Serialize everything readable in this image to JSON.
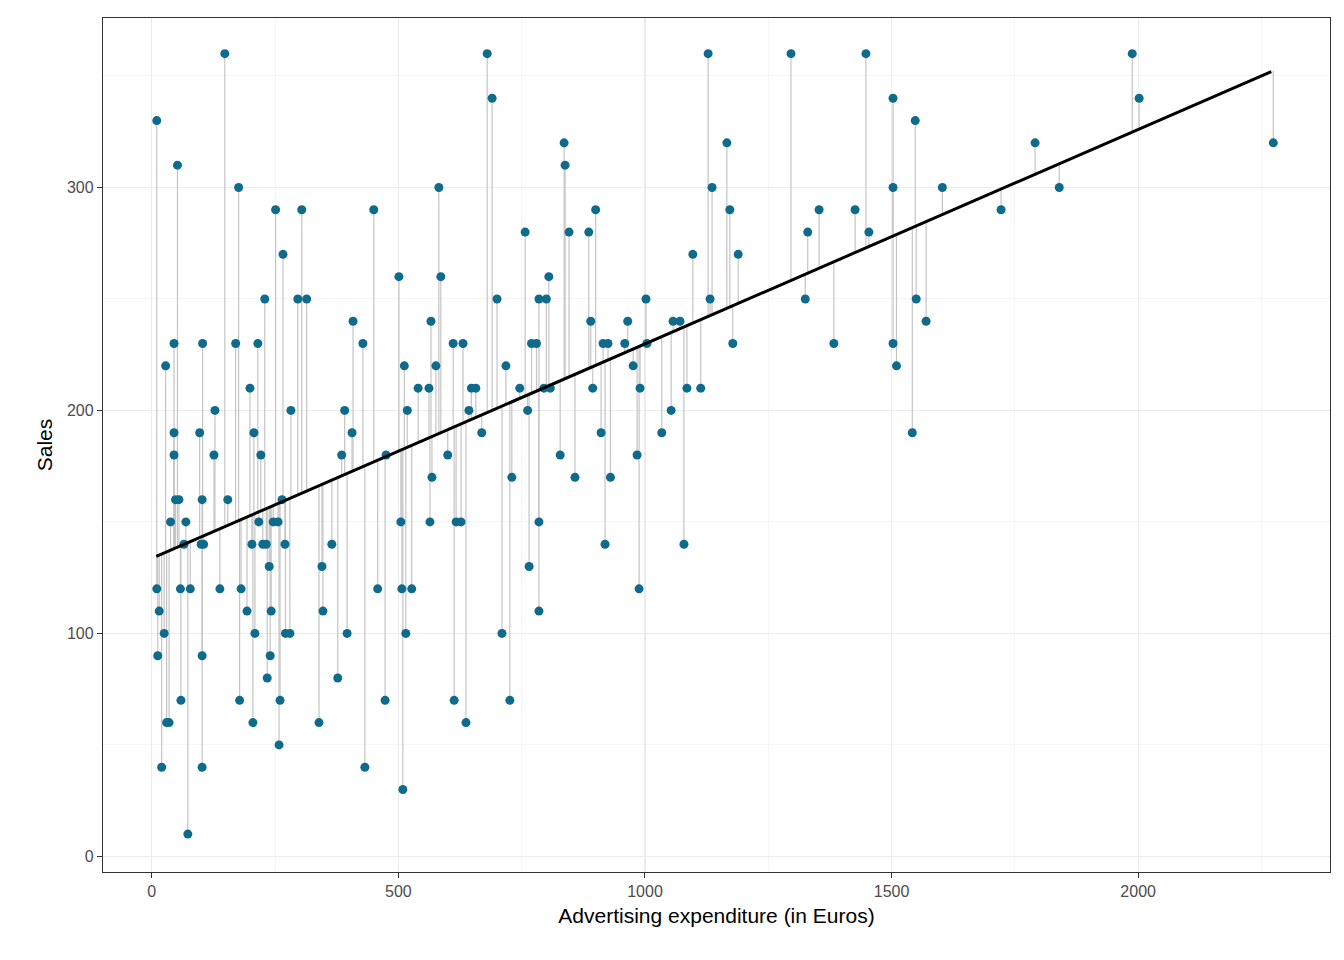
{
  "chart_data": {
    "type": "scatter",
    "x_label": "Advertising expenditure (in Euros)",
    "y_label": "Sales",
    "xlim": [
      -99,
      2389
    ],
    "ylim": [
      -7,
      376
    ],
    "xticks": [
      0,
      500,
      1000,
      1500,
      2000
    ],
    "yticks": [
      0,
      100,
      200,
      300
    ],
    "grid": true,
    "series": [
      {
        "type": "scatter",
        "color": "#0f6b8c",
        "marker": "circle",
        "x": [
          10,
          10,
          12,
          15,
          20,
          25,
          28,
          30,
          35,
          38,
          45,
          45,
          45,
          48,
          52,
          55,
          58,
          59,
          65,
          69,
          73,
          78,
          97,
          103,
          102,
          100,
          105,
          102,
          102,
          128,
          126,
          138,
          148,
          154,
          170,
          176,
          178,
          181,
          193,
          199,
          203,
          207,
          205,
          209,
          215,
          221,
          217,
          225,
          229,
          232,
          234,
          238,
          240,
          242,
          246,
          251,
          256,
          258,
          260,
          264,
          266,
          270,
          271,
          280,
          282,
          296,
          304,
          314,
          339,
          345,
          347,
          365,
          377,
          385,
          391,
          396,
          406,
          408,
          428,
          432,
          450,
          458,
          475,
          473,
          501,
          505,
          507,
          509,
          512,
          515,
          518,
          527,
          540,
          564,
          566,
          568,
          562,
          576,
          582,
          586,
          600,
          611,
          613,
          617,
          627,
          631,
          637,
          643,
          648,
          657,
          669,
          680,
          690,
          700,
          710,
          718,
          726,
          730,
          746,
          757,
          762,
          765,
          770,
          780,
          785,
          785,
          785,
          795,
          800,
          805,
          808,
          828,
          836,
          838,
          846,
          858,
          886,
          890,
          894,
          900,
          911,
          915,
          919,
          925,
          930,
          959,
          965,
          976,
          984,
          988,
          990,
          1002,
          1004,
          1034,
          1053,
          1057,
          1071,
          1079,
          1085,
          1097,
          1113,
          1128,
          1132,
          1136,
          1166,
          1172,
          1178,
          1189,
          1296,
          1325,
          1330,
          1353,
          1383,
          1426,
          1448,
          1454,
          1503,
          1503,
          1503,
          1510,
          1542,
          1548,
          1550,
          1570,
          1603,
          1722,
          1791,
          1840,
          1988,
          2002,
          2274
        ],
        "values": [
          330,
          120,
          90,
          110,
          40,
          100,
          220,
          60,
          60,
          150,
          230,
          190,
          180,
          160,
          310,
          160,
          120,
          70,
          140,
          150,
          10,
          120,
          190,
          230,
          160,
          140,
          140,
          90,
          40,
          200,
          180,
          120,
          360,
          160,
          230,
          300,
          70,
          120,
          110,
          210,
          140,
          190,
          60,
          100,
          230,
          180,
          150,
          140,
          250,
          140,
          80,
          130,
          90,
          110,
          150,
          290,
          150,
          50,
          70,
          160,
          270,
          140,
          100,
          100,
          200,
          250,
          290,
          250,
          60,
          130,
          110,
          140,
          80,
          180,
          200,
          100,
          190,
          240,
          230,
          40,
          290,
          120,
          180,
          70,
          260,
          150,
          120,
          30,
          220,
          100,
          200,
          120,
          210,
          150,
          240,
          170,
          210,
          220,
          300,
          260,
          180,
          230,
          70,
          150,
          150,
          230,
          60,
          200,
          210,
          210,
          190,
          360,
          340,
          250,
          100,
          220,
          70,
          170,
          210,
          280,
          200,
          130,
          230,
          230,
          250,
          150,
          110,
          210,
          250,
          260,
          210,
          180,
          320,
          310,
          280,
          170,
          280,
          240,
          210,
          290,
          190,
          230,
          140,
          230,
          170,
          230,
          240,
          220,
          180,
          120,
          210,
          250,
          230,
          190,
          200,
          240,
          240,
          140,
          210,
          270,
          210,
          360,
          250,
          300,
          320,
          290,
          230,
          270,
          360,
          250,
          280,
          290,
          230,
          290,
          360,
          280,
          340,
          300,
          230,
          220,
          190,
          330,
          250,
          240,
          300,
          290,
          320,
          300,
          360,
          340,
          320
        ]
      },
      {
        "type": "line",
        "color": "#000000",
        "line_style": "solid",
        "x": [
          9,
          2270
        ],
        "values": [
          134.5,
          352
        ]
      }
    ]
  }
}
